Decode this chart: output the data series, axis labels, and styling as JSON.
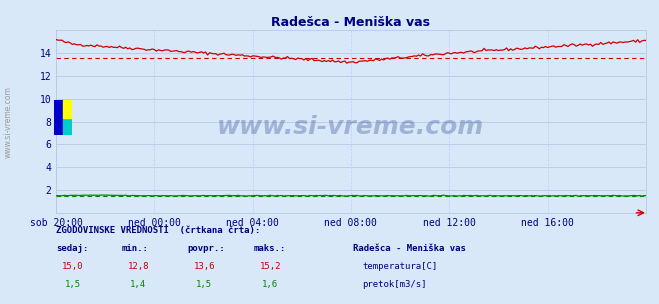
{
  "title": "Radešca - Meniška vas",
  "title_color": "#000080",
  "bg_color": "#d8e8f8",
  "plot_bg_color": "#d8e8f8",
  "grid_color": "#b0c4de",
  "grid_color_v": "#c8c8ff",
  "x_labels": [
    "sob 20:00",
    "ned 00:00",
    "ned 04:00",
    "ned 08:00",
    "ned 12:00",
    "ned 16:00"
  ],
  "x_ticks_pos": [
    0,
    24,
    48,
    72,
    96,
    120
  ],
  "y_ticks": [
    2,
    4,
    6,
    8,
    10,
    12,
    14
  ],
  "ylim": [
    0,
    16.0
  ],
  "xlim": [
    0,
    144
  ],
  "temp_color": "#cc0000",
  "flow_color": "#008800",
  "temp_avg": 13.6,
  "flow_avg": 1.5,
  "watermark": "www.si-vreme.com",
  "watermark_color": "#1a3a8a",
  "watermark_alpha": 0.3,
  "n_points": 289,
  "legend_title": "Radešca - Meniška vas",
  "legend_items": [
    "temperatura[C]",
    "pretok[m3/s]"
  ],
  "legend_colors": [
    "#cc0000",
    "#008800"
  ],
  "table_header": [
    "sedaj:",
    "min.:",
    "povpr.:",
    "maks.:"
  ],
  "table_rows": [
    [
      "15,0",
      "12,8",
      "13,6",
      "15,2"
    ],
    [
      "1,5",
      "1,4",
      "1,5",
      "1,6"
    ]
  ],
  "table_row_colors": [
    "#cc0000",
    "#008800"
  ],
  "footer_text": "ZGODOVINSKE VREDNOSTI  (črtkana črta):",
  "footer_color": "#000080",
  "tick_label_color": "#000080",
  "left_label": "www.si-vreme.com"
}
